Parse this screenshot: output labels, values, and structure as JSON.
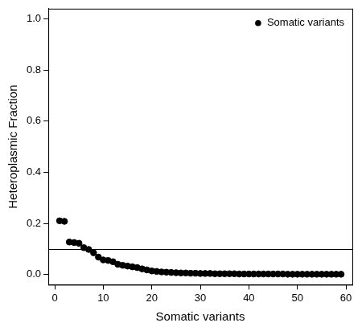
{
  "chart_data": {
    "type": "scatter",
    "x_label": "Somatic variants",
    "y_label": "Heteroplasmic Fraction",
    "legend": "top right",
    "grid": false,
    "threshold": 0.1,
    "xlim": [
      -1.32,
      61.32
    ],
    "ylim": [
      -0.04,
      1.04
    ],
    "xticks": [
      0,
      10,
      20,
      30,
      40,
      50,
      60
    ],
    "yticks": [
      {
        "value": 0,
        "label": "0.0"
      },
      0.2,
      0.4,
      0.6,
      0.8,
      {
        "value": 1,
        "label": "1.0"
      }
    ],
    "series": [
      {
        "name": "Somatic variants",
        "color": "#000000",
        "marker": "circle",
        "x": [
          1,
          2,
          3,
          4,
          5,
          6,
          7,
          8,
          9,
          10,
          11,
          12,
          13,
          14,
          15,
          16,
          17,
          18,
          19,
          20,
          21,
          22,
          23,
          24,
          25,
          26,
          27,
          28,
          29,
          30,
          31,
          32,
          33,
          34,
          35,
          36,
          37,
          38,
          39,
          40,
          41,
          42,
          43,
          44,
          45,
          46,
          47,
          48,
          49,
          50,
          51,
          52,
          53,
          54,
          55,
          56,
          57,
          58,
          59
        ],
        "values": [
          0.21,
          0.208,
          0.127,
          0.125,
          0.122,
          0.105,
          0.098,
          0.085,
          0.068,
          0.057,
          0.055,
          0.05,
          0.04,
          0.036,
          0.033,
          0.03,
          0.027,
          0.022,
          0.018,
          0.014,
          0.012,
          0.01,
          0.009,
          0.008,
          0.007,
          0.006,
          0.006,
          0.005,
          0.005,
          0.004,
          0.004,
          0.004,
          0.003,
          0.003,
          0.003,
          0.003,
          0.003,
          0.002,
          0.002,
          0.002,
          0.002,
          0.002,
          0.002,
          0.002,
          0.002,
          0.002,
          0.002,
          0.001,
          0.001,
          0.001,
          0.001,
          0.001,
          0.001,
          0.001,
          0.001,
          0.001,
          0.001,
          0.001,
          0.001
        ]
      }
    ]
  }
}
